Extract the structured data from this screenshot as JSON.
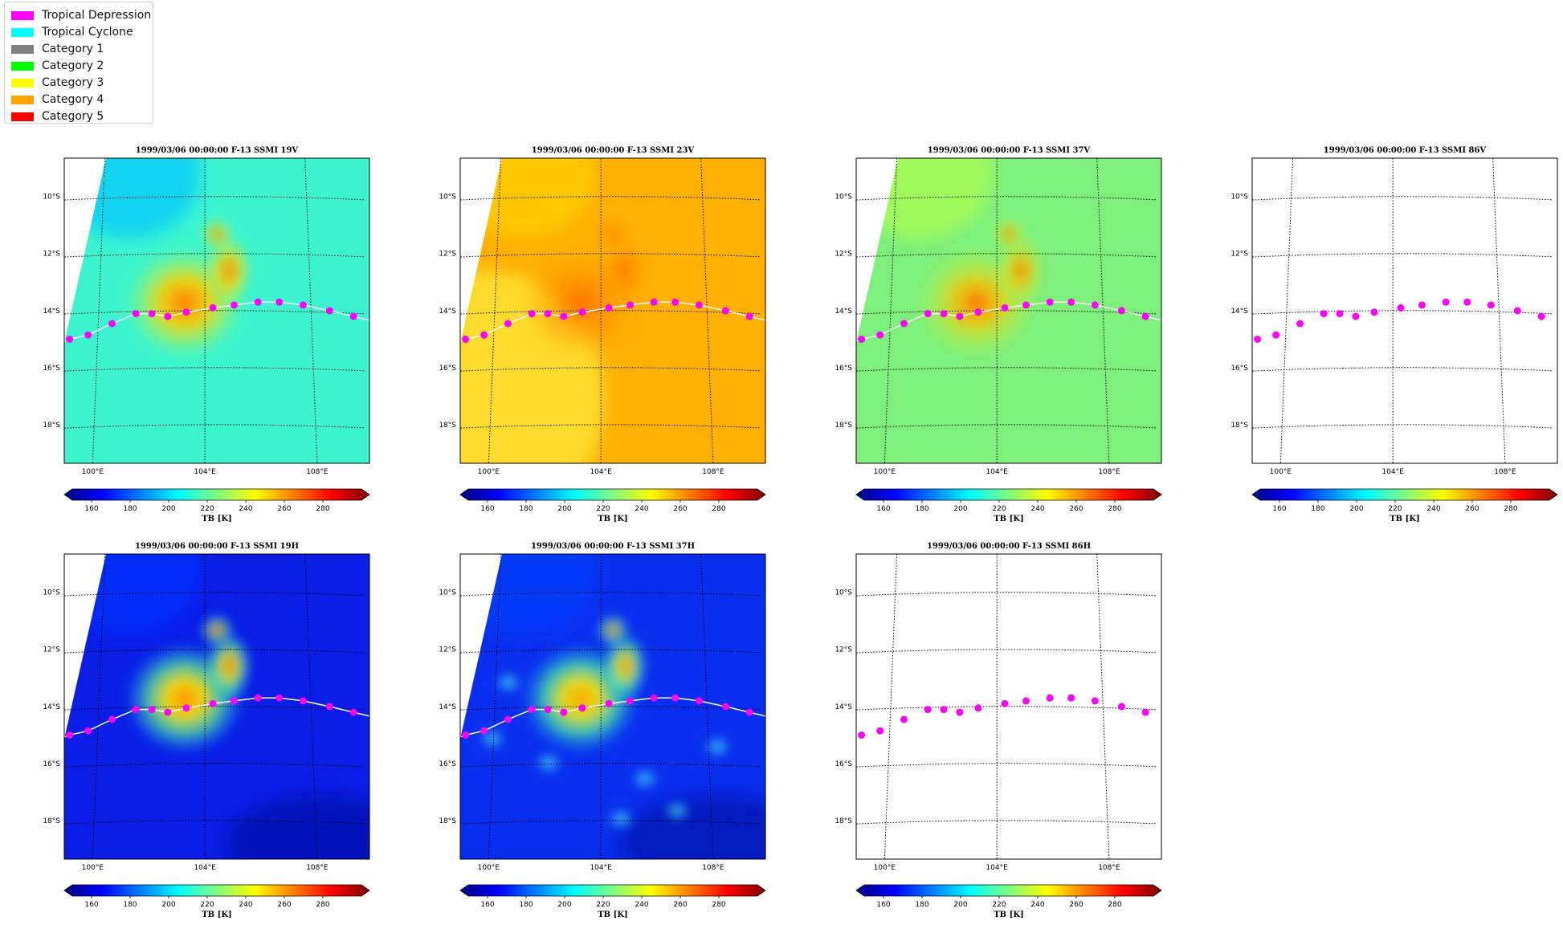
{
  "legend": {
    "items": [
      {
        "label": "Tropical Depression",
        "color": "#ff00ff"
      },
      {
        "label": "Tropical Cyclone",
        "color": "#00ffff"
      },
      {
        "label": "Category 1",
        "color": "#808080"
      },
      {
        "label": "Category 2",
        "color": "#00ff00"
      },
      {
        "label": "Category 3",
        "color": "#ffff00"
      },
      {
        "label": "Category 4",
        "color": "#ffa500"
      },
      {
        "label": "Category 5",
        "color": "#ff0000"
      }
    ]
  },
  "map_labels": {
    "lat_ticks": [
      "10°S",
      "12°S",
      "14°S",
      "16°S",
      "18°S"
    ],
    "lon_ticks": [
      "100°E",
      "104°E",
      "108°E"
    ]
  },
  "colorbar": {
    "ticks": [
      "160",
      "180",
      "200",
      "220",
      "240",
      "260",
      "280"
    ],
    "label": "TB [K]"
  },
  "track_color": "#ff00ff",
  "track_points": [
    {
      "lon": 98.9,
      "lat": -14.95
    },
    {
      "lon": 99.6,
      "lat": -14.8
    },
    {
      "lon": 100.5,
      "lat": -14.4
    },
    {
      "lon": 101.4,
      "lat": -14.05
    },
    {
      "lon": 102.0,
      "lat": -14.05
    },
    {
      "lon": 102.6,
      "lat": -14.15
    },
    {
      "lon": 103.3,
      "lat": -14.0
    },
    {
      "lon": 104.3,
      "lat": -13.85
    },
    {
      "lon": 105.1,
      "lat": -13.75
    },
    {
      "lon": 106.0,
      "lat": -13.65
    },
    {
      "lon": 106.8,
      "lat": -13.65
    },
    {
      "lon": 107.7,
      "lat": -13.75
    },
    {
      "lon": 108.7,
      "lat": -13.95
    },
    {
      "lon": 109.6,
      "lat": -14.15
    }
  ],
  "panels": [
    {
      "title": "1999/03/06 00:00:00  F-13 SSMI 19V",
      "field": "19V"
    },
    {
      "title": "1999/03/06 00:00:00  F-13 SSMI 23V",
      "field": "23V"
    },
    {
      "title": "1999/03/06 00:00:00  F-13 SSMI 37V",
      "field": "37V"
    },
    {
      "title": "1999/03/06 00:00:00  F-13 SSMI 86V",
      "field": "none"
    },
    {
      "title": "1999/03/06 00:00:00  F-13 SSMI 19H",
      "field": "19H"
    },
    {
      "title": "1999/03/06 00:00:00  F-13 SSMI 37H",
      "field": "37H"
    },
    {
      "title": "1999/03/06 00:00:00  F-13 SSMI 86H",
      "field": "none"
    }
  ]
}
